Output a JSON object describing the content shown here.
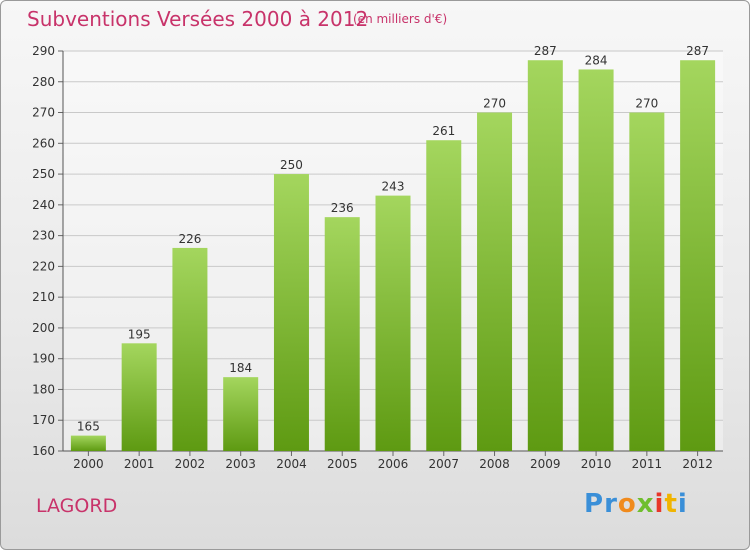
{
  "header": {
    "title": "Subventions Versées 2000 à 2012",
    "subtitle": "(en milliers d'€)"
  },
  "footer": {
    "place": "LAGORD",
    "logo_letters": [
      {
        "ch": "P",
        "color": "#3a8fd8"
      },
      {
        "ch": "r",
        "color": "#3a8fd8"
      },
      {
        "ch": "o",
        "color": "#f08a1c"
      },
      {
        "ch": "x",
        "color": "#6fbe2e"
      },
      {
        "ch": "i",
        "color": "#e8362a"
      },
      {
        "ch": "t",
        "color": "#f0b400"
      },
      {
        "ch": "i",
        "color": "#3a8fd8"
      }
    ]
  },
  "colors": {
    "bar_light": "#a4d65e",
    "bar_dark": "#5e9a12",
    "title": "#c8336a",
    "grid": "#c9c9c9"
  },
  "chart_data": {
    "type": "bar",
    "title": "Subventions Versées 2000 à 2012",
    "subtitle": "(en milliers d'€)",
    "categories": [
      "2000",
      "2001",
      "2002",
      "2003",
      "2004",
      "2005",
      "2006",
      "2007",
      "2008",
      "2009",
      "2010",
      "2011",
      "2012"
    ],
    "values": [
      165,
      195,
      226,
      184,
      250,
      236,
      243,
      261,
      270,
      287,
      284,
      270,
      287
    ],
    "ylim": [
      160,
      290
    ],
    "yticks": [
      160,
      170,
      180,
      190,
      200,
      210,
      220,
      230,
      240,
      250,
      260,
      270,
      280,
      290
    ],
    "grid": true,
    "data_labels": true
  }
}
